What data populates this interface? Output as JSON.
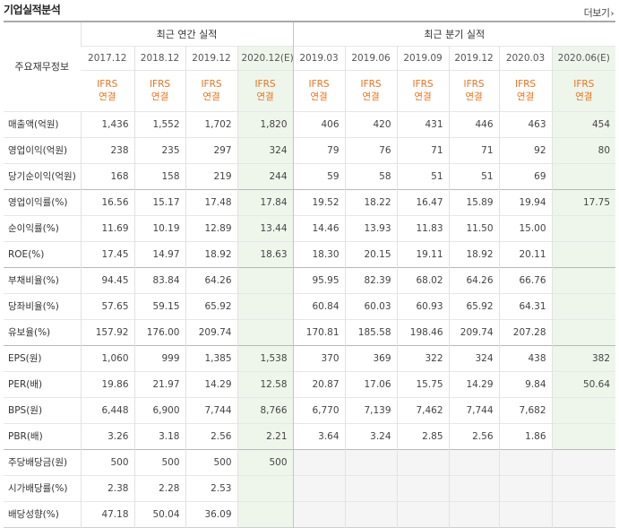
{
  "page": {
    "title": "기업실적분석",
    "more_label": "더보기",
    "more_icon": "chevron-right-icon"
  },
  "table": {
    "row_header_label": "주요재무정보",
    "group_annual": "최근 연간 실적",
    "group_quarter": "최근 분기 실적",
    "periods": [
      "2017.12",
      "2018.12",
      "2019.12",
      "2020.12(E)",
      "2019.03",
      "2019.06",
      "2019.09",
      "2019.12",
      "2020.03",
      "2020.06(E)"
    ],
    "standards": [
      [
        "IFRS",
        "연결"
      ],
      [
        "IFRS",
        "연결"
      ],
      [
        "IFRS",
        "연결"
      ],
      [
        "IFRS",
        "연결"
      ],
      [
        "IFRS",
        "연결"
      ],
      [
        "IFRS",
        "연결"
      ],
      [
        "IFRS",
        "연결"
      ],
      [
        "IFRS",
        "연결"
      ],
      [
        "IFRS",
        "연결"
      ],
      [
        "IFRS",
        "연결"
      ]
    ],
    "rows": [
      {
        "label": "매출액(억원)",
        "values": [
          "1,436",
          "1,552",
          "1,702",
          "1,820",
          "406",
          "420",
          "431",
          "446",
          "463",
          "454"
        ]
      },
      {
        "label": "영업이익(억원)",
        "values": [
          "238",
          "235",
          "297",
          "324",
          "79",
          "76",
          "71",
          "71",
          "92",
          "80"
        ]
      },
      {
        "label": "당기순이익(억원)",
        "values": [
          "168",
          "158",
          "219",
          "244",
          "59",
          "58",
          "51",
          "51",
          "69",
          ""
        ]
      },
      {
        "label": "영업이익률(%)",
        "values": [
          "16.56",
          "15.17",
          "17.48",
          "17.84",
          "19.52",
          "18.22",
          "16.47",
          "15.89",
          "19.94",
          "17.75"
        ]
      },
      {
        "label": "순이익률(%)",
        "values": [
          "11.69",
          "10.19",
          "12.89",
          "13.44",
          "14.46",
          "13.93",
          "11.83",
          "11.50",
          "15.00",
          ""
        ]
      },
      {
        "label": "ROE(%)",
        "values": [
          "17.45",
          "14.97",
          "18.92",
          "18.63",
          "18.30",
          "20.15",
          "19.11",
          "18.92",
          "20.11",
          ""
        ]
      },
      {
        "label": "부채비율(%)",
        "values": [
          "94.45",
          "83.84",
          "64.26",
          "",
          "95.95",
          "82.39",
          "68.02",
          "64.26",
          "66.76",
          ""
        ]
      },
      {
        "label": "당좌비율(%)",
        "values": [
          "57.65",
          "59.15",
          "65.92",
          "",
          "60.84",
          "60.03",
          "60.93",
          "65.92",
          "64.31",
          ""
        ]
      },
      {
        "label": "유보율(%)",
        "values": [
          "157.92",
          "176.00",
          "209.74",
          "",
          "170.81",
          "185.58",
          "198.46",
          "209.74",
          "207.28",
          ""
        ]
      },
      {
        "label": "EPS(원)",
        "values": [
          "1,060",
          "999",
          "1,385",
          "1,538",
          "370",
          "369",
          "322",
          "324",
          "438",
          "382"
        ]
      },
      {
        "label": "PER(배)",
        "values": [
          "19.86",
          "21.97",
          "14.29",
          "12.58",
          "20.87",
          "17.06",
          "15.75",
          "14.29",
          "9.84",
          "50.64"
        ]
      },
      {
        "label": "BPS(원)",
        "values": [
          "6,448",
          "6,900",
          "7,744",
          "8,766",
          "6,770",
          "7,139",
          "7,462",
          "7,744",
          "7,682",
          ""
        ]
      },
      {
        "label": "PBR(배)",
        "values": [
          "3.26",
          "3.18",
          "2.56",
          "2.21",
          "3.64",
          "3.24",
          "2.85",
          "2.56",
          "1.86",
          ""
        ]
      },
      {
        "label": "주당배당금(원)",
        "values": [
          "500",
          "500",
          "500",
          "500",
          "",
          "",
          "",
          "",
          "",
          ""
        ]
      },
      {
        "label": "시가배당률(%)",
        "values": [
          "2.38",
          "2.28",
          "2.53",
          "",
          "",
          "",
          "",
          "",
          "",
          ""
        ]
      },
      {
        "label": "배당성향(%)",
        "values": [
          "47.18",
          "50.04",
          "36.09",
          "",
          "",
          "",
          "",
          "",
          "",
          ""
        ]
      }
    ],
    "estimate_columns": [
      3,
      9
    ],
    "section_break_before_rows": [
      3,
      6,
      9,
      13
    ],
    "empty_shaded_rows": [
      13,
      14,
      15
    ],
    "colors": {
      "ifrs_orange": "#e8731e",
      "estimate_green": "#eef6ec",
      "header_border": "#a9a9a9"
    }
  }
}
